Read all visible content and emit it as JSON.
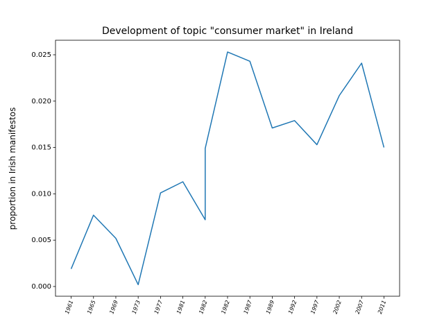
{
  "chart_data": {
    "type": "line",
    "title": "Development of topic \"consumer market\" in Ireland",
    "y_label": "proportion in Irish manifestos",
    "categories": [
      "1961",
      "1965",
      "1969",
      "1973",
      "1977",
      "1981",
      "1982",
      "1982",
      "1987",
      "1989",
      "1992",
      "1997",
      "2002",
      "2007",
      "2011"
    ],
    "values": [
      0.0019,
      0.0077,
      0.0052,
      0.0002,
      0.0101,
      0.0113,
      [
        0.0072,
        0.0149
      ],
      0.0253,
      0.0243,
      0.0171,
      0.0179,
      0.0153,
      0.0206,
      0.0241,
      0.015
    ],
    "color": "#1f77b4",
    "ylim": [
      -0.00105,
      0.02657
    ],
    "yticks": [
      {
        "value": 0,
        "label": "0.000"
      },
      {
        "value": 0.005,
        "label": "0.005"
      },
      {
        "value": 0.01,
        "label": "0.010"
      },
      {
        "value": 0.015,
        "label": "0.015"
      },
      {
        "value": 0.02,
        "label": "0.020"
      },
      {
        "value": 0.025,
        "label": "0.025"
      }
    ],
    "grid": false
  }
}
